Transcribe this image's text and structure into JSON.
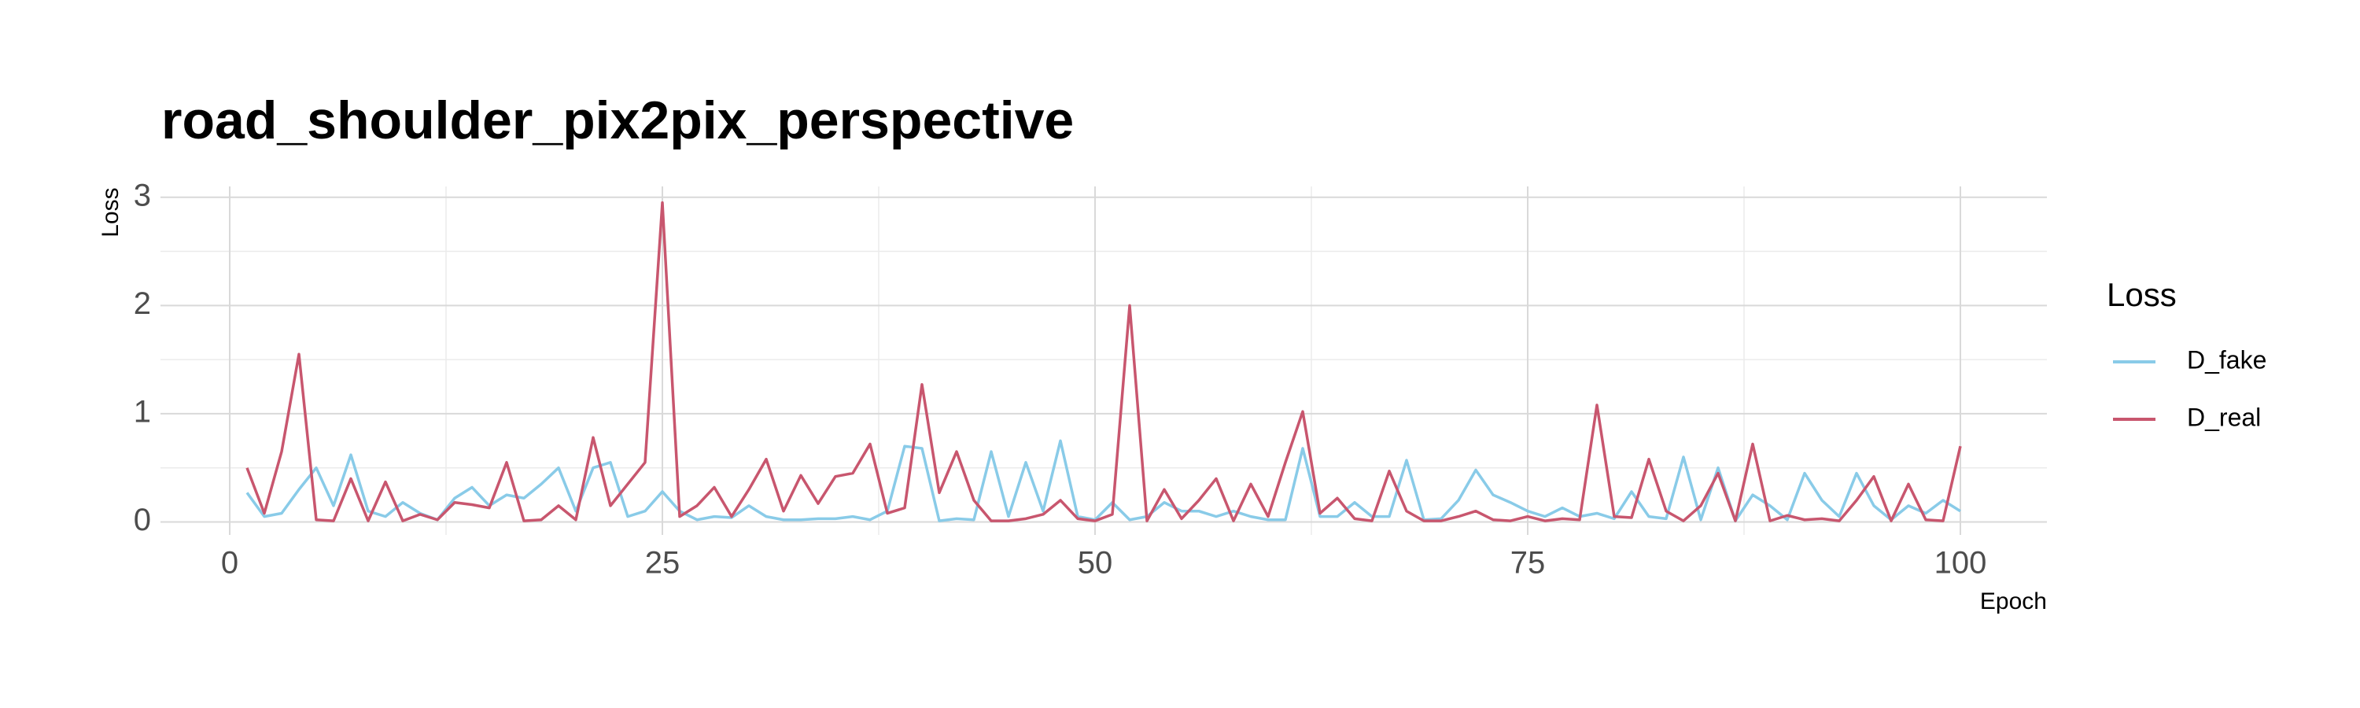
{
  "chart_data": {
    "type": "line",
    "title": "road_shoulder_pix2pix_perspective",
    "x_label": "Epoch",
    "y_label": "Loss",
    "legend_title": "Loss",
    "x": [
      1,
      2,
      3,
      4,
      5,
      6,
      7,
      8,
      9,
      10,
      11,
      12,
      13,
      14,
      15,
      16,
      17,
      18,
      19,
      20,
      21,
      22,
      23,
      24,
      25,
      26,
      27,
      28,
      29,
      30,
      31,
      32,
      33,
      34,
      35,
      36,
      37,
      38,
      39,
      40,
      41,
      42,
      43,
      44,
      45,
      46,
      47,
      48,
      49,
      50,
      51,
      52,
      53,
      54,
      55,
      56,
      57,
      58,
      59,
      60,
      61,
      62,
      63,
      64,
      65,
      66,
      67,
      68,
      69,
      70,
      71,
      72,
      73,
      74,
      75,
      76,
      77,
      78,
      79,
      80,
      81,
      82,
      83,
      84,
      85,
      86,
      87,
      88,
      89,
      90,
      91,
      92,
      93,
      94,
      95,
      96,
      97,
      98,
      99,
      100
    ],
    "series": [
      {
        "name": "D_fake",
        "color": "#89cbe8",
        "values": [
          0.27,
          0.05,
          0.08,
          0.3,
          0.5,
          0.15,
          0.62,
          0.1,
          0.05,
          0.18,
          0.08,
          0.02,
          0.22,
          0.32,
          0.15,
          0.25,
          0.22,
          0.35,
          0.5,
          0.1,
          0.5,
          0.55,
          0.05,
          0.1,
          0.28,
          0.1,
          0.02,
          0.05,
          0.04,
          0.15,
          0.05,
          0.02,
          0.02,
          0.03,
          0.03,
          0.05,
          0.02,
          0.1,
          0.7,
          0.68,
          0.01,
          0.03,
          0.02,
          0.65,
          0.05,
          0.55,
          0.1,
          0.75,
          0.05,
          0.02,
          0.18,
          0.02,
          0.05,
          0.18,
          0.1,
          0.1,
          0.05,
          0.1,
          0.05,
          0.02,
          0.02,
          0.68,
          0.05,
          0.05,
          0.18,
          0.05,
          0.05,
          0.57,
          0.02,
          0.03,
          0.2,
          0.48,
          0.25,
          0.18,
          0.1,
          0.05,
          0.13,
          0.05,
          0.08,
          0.03,
          0.28,
          0.05,
          0.03,
          0.6,
          0.02,
          0.5,
          0.01,
          0.25,
          0.15,
          0.02,
          0.45,
          0.2,
          0.05,
          0.45,
          0.15,
          0.02,
          0.15,
          0.08,
          0.2,
          0.1
        ]
      },
      {
        "name": "D_real",
        "color": "#c8566e",
        "values": [
          0.5,
          0.08,
          0.65,
          1.55,
          0.02,
          0.01,
          0.4,
          0.01,
          0.37,
          0.01,
          0.07,
          0.02,
          0.18,
          0.16,
          0.13,
          0.55,
          0.01,
          0.02,
          0.15,
          0.02,
          0.78,
          0.15,
          0.35,
          0.55,
          2.95,
          0.05,
          0.15,
          0.32,
          0.05,
          0.3,
          0.58,
          0.1,
          0.43,
          0.17,
          0.42,
          0.45,
          0.72,
          0.08,
          0.13,
          1.27,
          0.27,
          0.65,
          0.2,
          0.01,
          0.01,
          0.03,
          0.07,
          0.2,
          0.03,
          0.01,
          0.07,
          2.0,
          0.01,
          0.3,
          0.03,
          0.2,
          0.4,
          0.01,
          0.35,
          0.05,
          0.55,
          1.02,
          0.08,
          0.22,
          0.03,
          0.01,
          0.47,
          0.1,
          0.01,
          0.01,
          0.05,
          0.1,
          0.02,
          0.01,
          0.05,
          0.01,
          0.03,
          0.02,
          1.08,
          0.05,
          0.04,
          0.58,
          0.1,
          0.01,
          0.15,
          0.45,
          0.01,
          0.72,
          0.01,
          0.06,
          0.02,
          0.03,
          0.01,
          0.2,
          0.42,
          0.01,
          0.35,
          0.02,
          0.01,
          0.7
        ]
      }
    ],
    "xlim": [
      -4,
      105
    ],
    "ylim": [
      -0.12,
      3.1
    ],
    "xticks": [
      0,
      25,
      50,
      75,
      100
    ],
    "yticks": [
      0,
      1,
      2,
      3
    ],
    "minor_xticks": [
      12.5,
      37.5,
      62.5,
      87.5
    ],
    "minor_yticks": [
      0.5,
      1.5,
      2.5
    ],
    "grid": true,
    "legend": "right"
  }
}
